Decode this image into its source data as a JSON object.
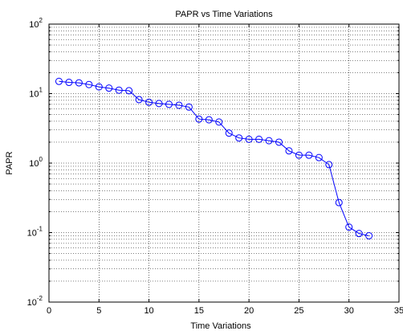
{
  "chart_data": {
    "type": "line",
    "title": "PAPR vs Time Variations",
    "xlabel": "Time Variations",
    "ylabel": "PAPR",
    "xlim": [
      0,
      35
    ],
    "ylim": [
      0.01,
      100
    ],
    "yscale": "log",
    "grid": true,
    "x_ticks": [
      {
        "value": 0,
        "label": "0"
      },
      {
        "value": 5,
        "label": "5"
      },
      {
        "value": 10,
        "label": "10"
      },
      {
        "value": 15,
        "label": "15"
      },
      {
        "value": 20,
        "label": "20"
      },
      {
        "value": 25,
        "label": "25"
      },
      {
        "value": 30,
        "label": "30"
      },
      {
        "value": 35,
        "label": "35"
      }
    ],
    "y_ticks": [
      {
        "value": 0.01,
        "label": "10",
        "exp": "-2"
      },
      {
        "value": 0.1,
        "label": "10",
        "exp": "-1"
      },
      {
        "value": 1,
        "label": "10",
        "exp": "0"
      },
      {
        "value": 10,
        "label": "10",
        "exp": "1"
      },
      {
        "value": 100,
        "label": "10",
        "exp": "2"
      }
    ],
    "series_color": "#0000ff",
    "marker": "circle",
    "x": [
      1,
      2,
      3,
      4,
      5,
      6,
      7,
      8,
      9,
      10,
      11,
      12,
      13,
      14,
      15,
      16,
      17,
      18,
      19,
      20,
      21,
      22,
      23,
      24,
      25,
      26,
      27,
      28,
      29,
      30,
      31,
      32
    ],
    "y": [
      15,
      14.5,
      14.3,
      13.5,
      12.5,
      12,
      11.2,
      11,
      8.2,
      7.5,
      7.2,
      7,
      6.8,
      6.4,
      4.3,
      4.2,
      3.9,
      2.7,
      2.3,
      2.2,
      2.2,
      2.1,
      2,
      1.5,
      1.3,
      1.3,
      1.2,
      0.95,
      0.27,
      0.12,
      0.097,
      0.09
    ]
  }
}
